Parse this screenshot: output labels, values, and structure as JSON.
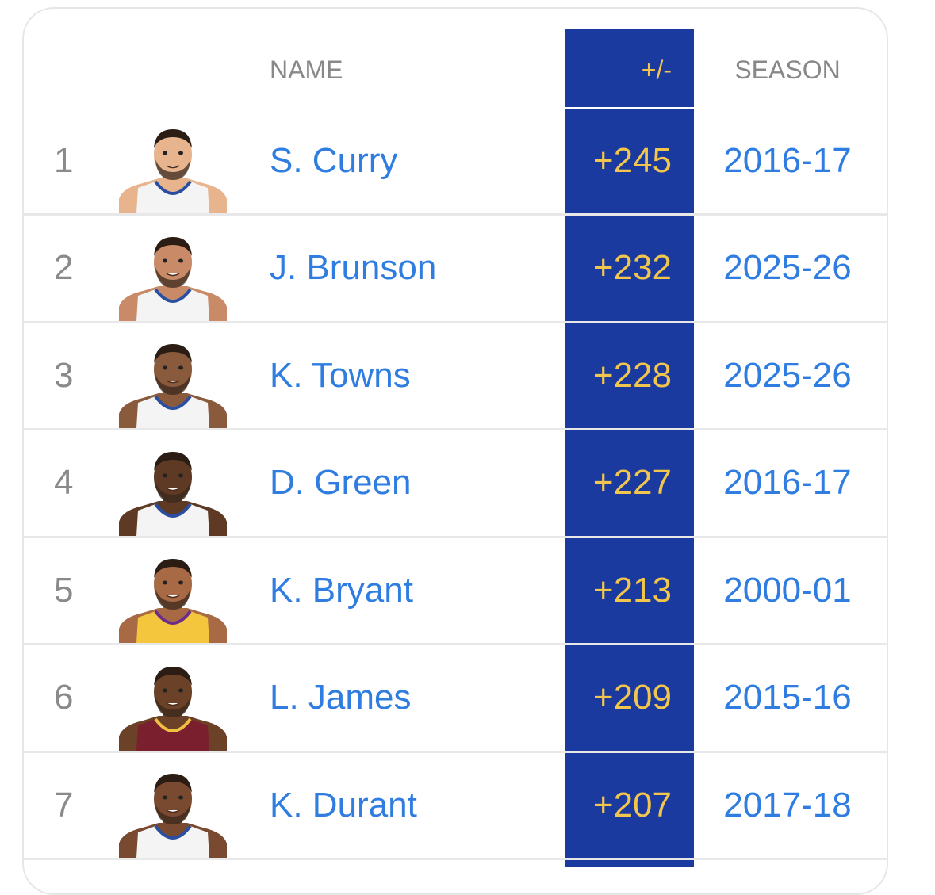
{
  "table": {
    "headers": {
      "name": "NAME",
      "plus_minus": "+/-",
      "season": "SEASON"
    },
    "rows": [
      {
        "rank": "1",
        "name": "S. Curry",
        "plus_minus": "+245",
        "season": "2016-17"
      },
      {
        "rank": "2",
        "name": "J. Brunson",
        "plus_minus": "+232",
        "season": "2025-26"
      },
      {
        "rank": "3",
        "name": "K. Towns",
        "plus_minus": "+228",
        "season": "2025-26"
      },
      {
        "rank": "4",
        "name": "D. Green",
        "plus_minus": "+227",
        "season": "2016-17"
      },
      {
        "rank": "5",
        "name": "K. Bryant",
        "plus_minus": "+213",
        "season": "2000-01"
      },
      {
        "rank": "6",
        "name": "L. James",
        "plus_minus": "+209",
        "season": "2015-16"
      },
      {
        "rank": "7",
        "name": "K. Durant",
        "plus_minus": "+207",
        "season": "2017-18"
      }
    ]
  }
}
